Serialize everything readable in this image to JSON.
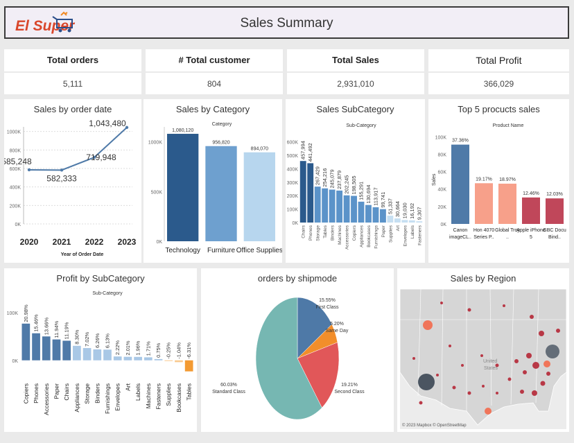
{
  "header": {
    "logo_text": "El Super",
    "title": "Sales Summary"
  },
  "kpis": [
    {
      "label": "Total orders",
      "value": "5,111"
    },
    {
      "label": "# Total customer",
      "value": "804"
    },
    {
      "label": "Total Sales",
      "value": "2,931,010"
    },
    {
      "label": "Total Profit",
      "value": "366,029"
    }
  ],
  "panels": {
    "sales_by_date": "Sales by order date",
    "sales_by_category": "Sales by Category",
    "sales_subcategory": "Sales SubCategory",
    "top5": "Top 5 procucts sales",
    "profit_subcategory": "Profit by SubCategory",
    "orders_shipmode": "orders by shipmode",
    "sales_region": "Sales by Region"
  },
  "map": {
    "country_label": "United States",
    "attribution": "© 2023 Mapbox © OpenStreetMap",
    "colors": {
      "land": "#d6d6d6",
      "water": "#ececec",
      "dot": "#b52a3a"
    }
  },
  "chart_data": [
    {
      "id": "line",
      "type": "line",
      "title": "Sales by order date",
      "xlabel": "Year of Order Date",
      "x": [
        "2020",
        "2021",
        "2022",
        "2023"
      ],
      "values": [
        585248,
        582333,
        719948,
        1043480
      ],
      "value_labels": [
        "585,248",
        "582,333",
        "719,948",
        "1,043,480"
      ],
      "y_ticks": [
        "0K",
        "200K",
        "400K",
        "600K",
        "800K",
        "1000K"
      ],
      "ylim": [
        0,
        1050000
      ],
      "color": "#4f7aa8"
    },
    {
      "id": "category",
      "type": "bar",
      "title": "Sales by Category",
      "header": "Category",
      "categories": [
        "Technology",
        "Furniture",
        "Office Supplies"
      ],
      "values": [
        1080120,
        956820,
        894070
      ],
      "value_labels": [
        "1,080,120",
        "956,820",
        "894,070"
      ],
      "y_ticks": [
        "0K",
        "500K",
        "1000K"
      ],
      "ylim": [
        0,
        1150000
      ],
      "colors": [
        "#2b5a8c",
        "#6ea0cf",
        "#b7d6ee"
      ]
    },
    {
      "id": "subcat_sales",
      "type": "bar",
      "title": "Sales SubCategory",
      "header": "Sub-Category",
      "categories": [
        "Chairs",
        "Phones",
        "Storage",
        "Tables",
        "Binders",
        "Machines",
        "Accessories",
        "Copiers",
        "Appliances",
        "Bookcases",
        "Furnishings",
        "Paper",
        "Supplies",
        "Art",
        "Envelopes",
        "Labels",
        "Fasteners"
      ],
      "values": [
        457994,
        441492,
        267429,
        254216,
        245079,
        237879,
        202245,
        198505,
        155291,
        130694,
        113917,
        99741,
        51337,
        30664,
        19030,
        16192,
        9307
      ],
      "value_labels": [
        "457,994",
        "441,492",
        "267,429",
        "254,216",
        "245,079",
        "237,879",
        "202,245",
        "198,505",
        "155,291",
        "130,694",
        "113,917",
        "99,741",
        "51,337",
        "30,664",
        "19,030",
        "16,192",
        "9,307"
      ],
      "y_ticks": [
        "0K",
        "100K",
        "200K",
        "300K",
        "400K",
        "500K",
        "600K"
      ],
      "ylim": [
        0,
        650000
      ],
      "color_dark": "#2b5a8c",
      "color_light": "#c6dff2"
    },
    {
      "id": "top5",
      "type": "bar",
      "title": "Top 5 procucts sales",
      "header": "Product Name",
      "ylabel": "Sales",
      "categories": [
        "Canon imageCL..",
        "Hon 4070 Series P..",
        "Global Troy ..",
        "Apple iPhone 5",
        "GBC Docu Bind.."
      ],
      "values": [
        37.36,
        19.17,
        18.97,
        12.46,
        12.03
      ],
      "value_labels": [
        "37.36%",
        "19.17%",
        "18.97%",
        "12.46%",
        "12.03%"
      ],
      "y_ticks": [
        "0K",
        "20K",
        "40K",
        "60K",
        "80K",
        "100K"
      ],
      "ylim": [
        0,
        105000
      ],
      "bar_values": [
        91000,
        46700,
        46200,
        30350,
        29300
      ],
      "colors": [
        "#4f7aa8",
        "#f7a08a",
        "#f7a08a",
        "#c0475a",
        "#c0475a"
      ]
    },
    {
      "id": "profit",
      "type": "bar",
      "title": "Profit by SubCategory",
      "header": "Sub-Category",
      "categories": [
        "Copiers",
        "Phones",
        "Accessories",
        "Paper",
        "Chairs",
        "Appliances",
        "Storage",
        "Binders",
        "Furnishings",
        "Envelopes",
        "Art",
        "Labels",
        "Machines",
        "Fasteners",
        "Supplies",
        "Bookcases",
        "Tables"
      ],
      "values": [
        20.98,
        15.46,
        13.66,
        11.94,
        11.19,
        8.3,
        7.02,
        6.26,
        6.13,
        2.22,
        2.01,
        1.96,
        1.71,
        0.75,
        -0.25,
        -1.04,
        -6.31
      ],
      "value_labels": [
        "20.98%",
        "15.46%",
        "13.66%",
        "11.94%",
        "11.19%",
        "8.30%",
        "7.02%",
        "6.26%",
        "6.13%",
        "2.22%",
        "2.01%",
        "1.96%",
        "1.71%",
        "0.75%",
        "-0.25%",
        "-1.04%",
        "-6.31%"
      ],
      "y_ticks": [
        "0K",
        "100K"
      ],
      "ylim": [
        -25000,
        120000
      ],
      "bar_values": [
        76800,
        56600,
        50000,
        43700,
        41000,
        30400,
        25700,
        22900,
        22400,
        8100,
        7400,
        7200,
        6300,
        2700,
        -900,
        -3800,
        -23100
      ],
      "color_pos": "#4f7aa8",
      "color_pos_light": "#a9c8e6",
      "color_neg": "#f39a32"
    },
    {
      "id": "shipmode",
      "type": "pie",
      "title": "orders by shipmode",
      "slices": [
        {
          "label": "First Class",
          "value": 15.55,
          "pct": "15.55%",
          "color": "#4e79a7"
        },
        {
          "label": "Same Day",
          "value": 5.2,
          "pct": "5.20%",
          "color": "#f28e2b"
        },
        {
          "label": "Second Class",
          "value": 19.21,
          "pct": "19.21%",
          "color": "#e15759"
        },
        {
          "label": "Standard Class",
          "value": 60.03,
          "pct": "60.03%",
          "color": "#76b7b2"
        }
      ]
    }
  ]
}
